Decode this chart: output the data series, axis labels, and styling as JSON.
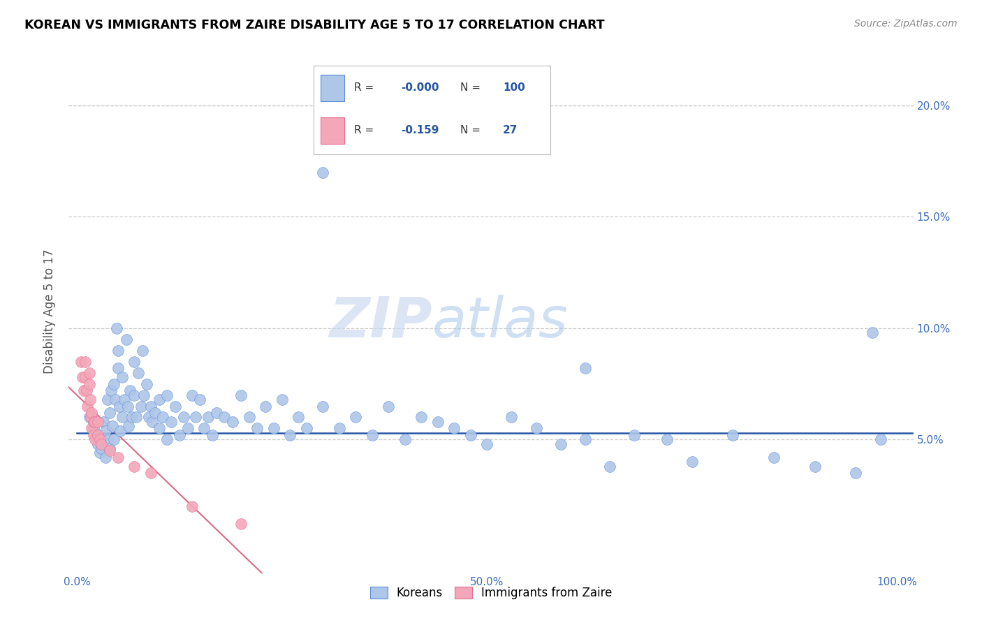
{
  "title": "KOREAN VS IMMIGRANTS FROM ZAIRE DISABILITY AGE 5 TO 17 CORRELATION CHART",
  "source": "Source: ZipAtlas.com",
  "ylabel": "Disability Age 5 to 17",
  "xlim": [
    -0.01,
    1.02
  ],
  "ylim": [
    -0.01,
    0.225
  ],
  "xticks": [
    0.0,
    0.1,
    0.2,
    0.3,
    0.4,
    0.5,
    0.6,
    0.7,
    0.8,
    0.9,
    1.0
  ],
  "xticklabels": [
    "0.0%",
    "",
    "",
    "",
    "",
    "50.0%",
    "",
    "",
    "",
    "",
    "100.0%"
  ],
  "yticks": [
    0.05,
    0.1,
    0.15,
    0.2
  ],
  "yticklabels": [
    "5.0%",
    "10.0%",
    "15.0%",
    "20.0%"
  ],
  "blue_r": "-0.000",
  "blue_n": "100",
  "pink_r": "-0.159",
  "pink_n": "27",
  "blue_color": "#aec6e8",
  "pink_color": "#f4a7b9",
  "blue_edge_color": "#5b8dd9",
  "pink_edge_color": "#e07090",
  "blue_line_color": "#2655a3",
  "pink_line_color": "#d45a78",
  "watermark_color": "#ccdff5",
  "blue_line_y": 0.053,
  "blue_x": [
    0.015,
    0.02,
    0.02,
    0.025,
    0.025,
    0.028,
    0.03,
    0.03,
    0.032,
    0.035,
    0.035,
    0.037,
    0.038,
    0.04,
    0.04,
    0.042,
    0.043,
    0.045,
    0.045,
    0.047,
    0.048,
    0.05,
    0.05,
    0.052,
    0.053,
    0.055,
    0.055,
    0.058,
    0.06,
    0.062,
    0.063,
    0.065,
    0.067,
    0.07,
    0.07,
    0.072,
    0.075,
    0.078,
    0.08,
    0.082,
    0.085,
    0.088,
    0.09,
    0.092,
    0.095,
    0.1,
    0.1,
    0.105,
    0.11,
    0.11,
    0.115,
    0.12,
    0.125,
    0.13,
    0.135,
    0.14,
    0.145,
    0.15,
    0.155,
    0.16,
    0.165,
    0.17,
    0.18,
    0.19,
    0.2,
    0.21,
    0.22,
    0.23,
    0.24,
    0.25,
    0.26,
    0.27,
    0.28,
    0.3,
    0.32,
    0.34,
    0.36,
    0.38,
    0.4,
    0.42,
    0.44,
    0.46,
    0.48,
    0.5,
    0.53,
    0.56,
    0.59,
    0.62,
    0.65,
    0.68,
    0.72,
    0.75,
    0.8,
    0.85,
    0.9,
    0.95,
    0.98,
    0.62,
    0.3,
    0.97
  ],
  "blue_y": [
    0.06,
    0.058,
    0.055,
    0.052,
    0.048,
    0.044,
    0.05,
    0.046,
    0.058,
    0.042,
    0.054,
    0.068,
    0.05,
    0.062,
    0.046,
    0.072,
    0.056,
    0.075,
    0.05,
    0.068,
    0.1,
    0.09,
    0.082,
    0.065,
    0.054,
    0.078,
    0.06,
    0.068,
    0.095,
    0.065,
    0.056,
    0.072,
    0.06,
    0.085,
    0.07,
    0.06,
    0.08,
    0.065,
    0.09,
    0.07,
    0.075,
    0.06,
    0.065,
    0.058,
    0.062,
    0.068,
    0.055,
    0.06,
    0.07,
    0.05,
    0.058,
    0.065,
    0.052,
    0.06,
    0.055,
    0.07,
    0.06,
    0.068,
    0.055,
    0.06,
    0.052,
    0.062,
    0.06,
    0.058,
    0.07,
    0.06,
    0.055,
    0.065,
    0.055,
    0.068,
    0.052,
    0.06,
    0.055,
    0.065,
    0.055,
    0.06,
    0.052,
    0.065,
    0.05,
    0.06,
    0.058,
    0.055,
    0.052,
    0.048,
    0.06,
    0.055,
    0.048,
    0.05,
    0.038,
    0.052,
    0.05,
    0.04,
    0.052,
    0.042,
    0.038,
    0.035,
    0.05,
    0.082,
    0.17,
    0.098
  ],
  "pink_x": [
    0.005,
    0.007,
    0.008,
    0.01,
    0.01,
    0.012,
    0.013,
    0.015,
    0.015,
    0.016,
    0.017,
    0.018,
    0.018,
    0.02,
    0.02,
    0.022,
    0.022,
    0.025,
    0.025,
    0.028,
    0.03,
    0.04,
    0.05,
    0.07,
    0.09,
    0.14,
    0.2
  ],
  "pink_y": [
    0.085,
    0.078,
    0.072,
    0.085,
    0.078,
    0.072,
    0.065,
    0.08,
    0.075,
    0.068,
    0.06,
    0.062,
    0.055,
    0.058,
    0.052,
    0.058,
    0.05,
    0.058,
    0.052,
    0.05,
    0.048,
    0.045,
    0.042,
    0.038,
    0.035,
    0.02,
    0.012
  ]
}
